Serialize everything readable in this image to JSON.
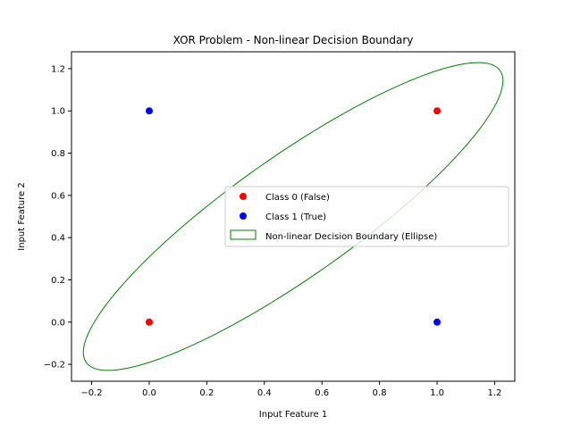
{
  "chart_data": {
    "type": "scatter",
    "title": "XOR Problem - Non-linear Decision Boundary",
    "xlabel": "Input Feature 1",
    "ylabel": "Input Feature 2",
    "xlim": [
      -0.27,
      1.27
    ],
    "ylim": [
      -0.28,
      1.28
    ],
    "xticks": [
      -0.2,
      0.0,
      0.2,
      0.4,
      0.6,
      0.8,
      1.0,
      1.2
    ],
    "xtick_labels": [
      "−0.2",
      "0.0",
      "0.2",
      "0.4",
      "0.6",
      "0.8",
      "1.0",
      "1.2"
    ],
    "yticks": [
      -0.2,
      0.0,
      0.2,
      0.4,
      0.6,
      0.8,
      1.0,
      1.2
    ],
    "ytick_labels": [
      "−0.2",
      "0.0",
      "0.2",
      "0.4",
      "0.6",
      "0.8",
      "1.0",
      "1.2"
    ],
    "grid": false,
    "legend_position": "center-right",
    "series": [
      {
        "name": "Class 0 (False)",
        "color": "#ff0000",
        "points": [
          {
            "x": 0,
            "y": 0
          },
          {
            "x": 1,
            "y": 1
          }
        ]
      },
      {
        "name": "Class 1 (True)",
        "color": "#0000ff",
        "points": [
          {
            "x": 0,
            "y": 1
          },
          {
            "x": 1,
            "y": 0
          }
        ]
      }
    ],
    "ellipse": {
      "name": "Non-linear Decision Boundary (Ellipse)",
      "color": "#008000",
      "center": [
        0.5,
        0.5
      ],
      "width": 2.0,
      "height": 0.5,
      "angle_deg": 45
    }
  }
}
